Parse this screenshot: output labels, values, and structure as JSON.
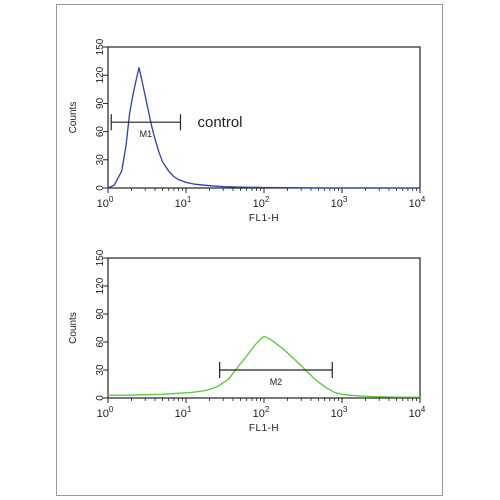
{
  "chart_data": [
    {
      "type": "line",
      "xscale": "log",
      "xlim": [
        1,
        10000
      ],
      "ylim": [
        0,
        150
      ],
      "xlabel": "FL1-H",
      "ylabel": "Counts",
      "x_ticks": [
        1,
        10,
        100,
        1000,
        10000
      ],
      "y_ticks": [
        0,
        30,
        60,
        90,
        120,
        150
      ],
      "y_tick_labels": [
        "0",
        "30",
        "60",
        "90",
        "120",
        "150"
      ],
      "annotation": "control",
      "color": "#2b3fb0",
      "marker": {
        "label": "M1",
        "x_range": [
          1.1,
          8.5
        ],
        "y": 70
      },
      "series": [
        {
          "x": [
            1,
            1.2,
            1.5,
            1.7,
            1.9,
            2.1,
            2.3,
            2.5,
            2.7,
            3.0,
            3.3,
            3.6,
            4.0,
            4.5,
            5.0,
            6.0,
            7.0,
            8.0,
            10,
            13,
            20,
            30,
            50,
            100,
            200,
            500,
            1000,
            3000,
            10000
          ],
          "y": [
            0,
            3,
            18,
            45,
            80,
            100,
            115,
            128,
            116,
            98,
            82,
            67,
            52,
            38,
            28,
            18,
            12,
            9,
            6,
            4,
            2.5,
            1.5,
            1,
            0.5,
            0.3,
            0,
            0,
            0,
            0
          ]
        }
      ]
    },
    {
      "type": "line",
      "xscale": "log",
      "xlim": [
        1,
        10000
      ],
      "ylim": [
        0,
        150
      ],
      "xlabel": "FL1-H",
      "ylabel": "Counts",
      "x_ticks": [
        1,
        10,
        100,
        1000,
        10000
      ],
      "y_ticks": [
        0,
        30,
        60,
        90,
        120,
        150
      ],
      "y_tick_labels": [
        "0",
        "30",
        "60",
        "90",
        "120",
        "150"
      ],
      "color": "#5cc83a",
      "marker": {
        "label": "M2",
        "x_range": [
          27,
          750
        ],
        "y": 30
      },
      "series": [
        {
          "x": [
            1,
            2,
            3,
            5,
            8,
            12,
            18,
            25,
            35,
            45,
            60,
            75,
            90,
            100,
            115,
            130,
            150,
            180,
            220,
            280,
            350,
            450,
            600,
            800,
            1000,
            1500,
            2500,
            5000,
            10000
          ],
          "y": [
            3,
            3,
            3.5,
            4,
            5,
            6,
            8,
            12,
            20,
            32,
            45,
            56,
            63,
            66,
            64,
            61,
            57,
            52,
            45,
            37,
            29,
            20,
            12,
            6,
            4,
            2.5,
            1.5,
            1,
            1
          ]
        }
      ]
    }
  ]
}
